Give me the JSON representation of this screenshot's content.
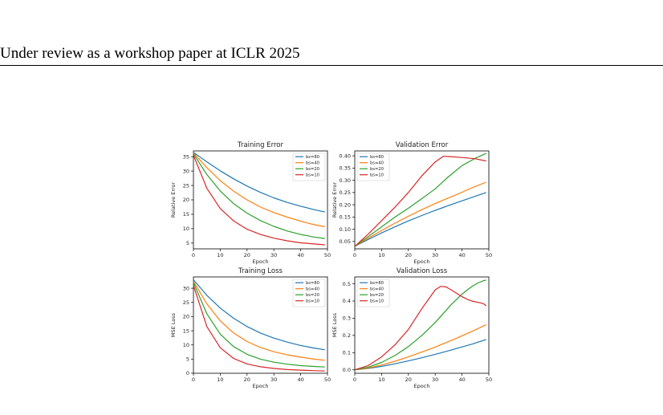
{
  "header": {
    "text": "Under review as a workshop paper at ICLR 2025"
  },
  "colors": {
    "bs80": "#1f77b4",
    "bs40": "#ff7f0e",
    "bs20": "#2ca02c",
    "bs10": "#d62728"
  },
  "chart_data": [
    {
      "type": "line",
      "title": "Training Error",
      "xlabel": "Epoch",
      "ylabel": "Relative Error",
      "xlim": [
        0,
        50
      ],
      "ylim": [
        3,
        37
      ],
      "xticks": [
        "0",
        "10",
        "20",
        "30",
        "40",
        "50"
      ],
      "xtick_values": [
        0,
        10,
        20,
        30,
        40,
        50
      ],
      "yticks": [
        "5",
        "10",
        "15",
        "20",
        "25",
        "30",
        "35"
      ],
      "ytick_values": [
        5,
        10,
        15,
        20,
        25,
        30,
        35
      ],
      "legend": "top-right",
      "x": [
        0,
        5,
        10,
        15,
        20,
        25,
        30,
        35,
        40,
        45,
        49
      ],
      "series": [
        {
          "name": "bs=80",
          "color": "#1f77b4",
          "values": [
            36.5,
            33.2,
            30.1,
            27.3,
            24.8,
            22.6,
            20.7,
            19.1,
            17.8,
            16.6,
            15.8
          ]
        },
        {
          "name": "bs=40",
          "color": "#ff7f0e",
          "values": [
            36.3,
            31.2,
            26.7,
            23.0,
            20.0,
            17.5,
            15.6,
            14.0,
            12.6,
            11.4,
            10.7
          ]
        },
        {
          "name": "bs=20",
          "color": "#2ca02c",
          "values": [
            36.0,
            28.8,
            23.1,
            18.7,
            15.4,
            12.8,
            10.8,
            9.2,
            8.0,
            7.1,
            6.6
          ]
        },
        {
          "name": "bs=10",
          "color": "#d62728",
          "values": [
            35.5,
            24.0,
            17.0,
            12.7,
            9.8,
            8.0,
            6.7,
            5.8,
            5.1,
            4.7,
            4.4
          ]
        }
      ]
    },
    {
      "type": "line",
      "title": "Validation Error",
      "xlabel": "Epoch",
      "ylabel": "Relative Error",
      "xlim": [
        0,
        50
      ],
      "ylim": [
        0.02,
        0.42
      ],
      "xticks": [
        "0",
        "10",
        "20",
        "30",
        "40",
        "50"
      ],
      "xtick_values": [
        0,
        10,
        20,
        30,
        40,
        50
      ],
      "yticks": [
        "0.05",
        "0.10",
        "0.15",
        "0.20",
        "0.25",
        "0.30",
        "0.35",
        "0.40"
      ],
      "ytick_values": [
        0.05,
        0.1,
        0.15,
        0.2,
        0.25,
        0.3,
        0.35,
        0.4
      ],
      "legend": "top-left",
      "x": [
        0,
        5,
        10,
        15,
        20,
        25,
        30,
        33,
        35,
        40,
        45,
        49
      ],
      "series": [
        {
          "name": "bs=80",
          "color": "#1f77b4",
          "values": [
            0.03,
            0.058,
            0.085,
            0.11,
            0.134,
            0.156,
            0.177,
            0.189,
            0.197,
            0.216,
            0.235,
            0.25
          ]
        },
        {
          "name": "bs=40",
          "color": "#ff7f0e",
          "values": [
            0.03,
            0.063,
            0.095,
            0.125,
            0.153,
            0.18,
            0.205,
            0.219,
            0.228,
            0.251,
            0.275,
            0.292
          ]
        },
        {
          "name": "bs=20",
          "color": "#2ca02c",
          "values": [
            0.03,
            0.07,
            0.11,
            0.15,
            0.186,
            0.225,
            0.265,
            0.295,
            0.315,
            0.36,
            0.39,
            0.41
          ]
        },
        {
          "name": "bs=10",
          "color": "#d62728",
          "values": [
            0.03,
            0.08,
            0.135,
            0.19,
            0.25,
            0.318,
            0.375,
            0.398,
            0.397,
            0.393,
            0.388,
            0.379
          ]
        }
      ]
    },
    {
      "type": "line",
      "title": "Training Loss",
      "xlabel": "Epoch",
      "ylabel": "MSE Loss",
      "xlim": [
        0,
        50
      ],
      "ylim": [
        0,
        34
      ],
      "xticks": [
        "0",
        "10",
        "20",
        "30",
        "40",
        "50"
      ],
      "xtick_values": [
        0,
        10,
        20,
        30,
        40,
        50
      ],
      "yticks": [
        "0",
        "5",
        "10",
        "15",
        "20",
        "25",
        "30"
      ],
      "ytick_values": [
        0,
        5,
        10,
        15,
        20,
        25,
        30
      ],
      "legend": "top-right",
      "x": [
        0,
        5,
        10,
        15,
        20,
        25,
        30,
        35,
        40,
        45,
        49
      ],
      "series": [
        {
          "name": "bs=80",
          "color": "#1f77b4",
          "values": [
            33.0,
            27.5,
            23.0,
            19.4,
            16.5,
            14.2,
            12.4,
            11.0,
            9.8,
            8.9,
            8.3
          ]
        },
        {
          "name": "bs=40",
          "color": "#ff7f0e",
          "values": [
            32.5,
            24.5,
            18.5,
            14.2,
            11.2,
            9.1,
            7.6,
            6.5,
            5.7,
            5.0,
            4.6
          ]
        },
        {
          "name": "bs=20",
          "color": "#2ca02c",
          "values": [
            32.0,
            21.0,
            13.8,
            9.4,
            6.7,
            5.0,
            3.9,
            3.2,
            2.7,
            2.4,
            2.2
          ]
        },
        {
          "name": "bs=10",
          "color": "#d62728",
          "values": [
            31.0,
            16.5,
            9.0,
            5.2,
            3.3,
            2.3,
            1.7,
            1.3,
            1.1,
            0.9,
            0.8
          ]
        }
      ]
    },
    {
      "type": "line",
      "title": "Validation Loss",
      "xlabel": "Epoch",
      "ylabel": "MSE Loss",
      "xlim": [
        0,
        50
      ],
      "ylim": [
        -0.02,
        0.54
      ],
      "xticks": [
        "0",
        "10",
        "20",
        "30",
        "40",
        "50"
      ],
      "xtick_values": [
        0,
        10,
        20,
        30,
        40,
        50
      ],
      "yticks": [
        "0.0",
        "0.1",
        "0.2",
        "0.3",
        "0.4",
        "0.5"
      ],
      "ytick_values": [
        0.0,
        0.1,
        0.2,
        0.3,
        0.4,
        0.5
      ],
      "legend": "top-left",
      "x": [
        0,
        5,
        10,
        15,
        20,
        25,
        30,
        32,
        34,
        36,
        38,
        40,
        42,
        44,
        46,
        48,
        49
      ],
      "series": [
        {
          "name": "bs=80",
          "color": "#1f77b4",
          "values": [
            0.0,
            0.008,
            0.02,
            0.035,
            0.052,
            0.07,
            0.09,
            0.098,
            0.107,
            0.115,
            0.124,
            0.133,
            0.142,
            0.151,
            0.161,
            0.171,
            0.176
          ]
        },
        {
          "name": "bs=40",
          "color": "#ff7f0e",
          "values": [
            0.0,
            0.01,
            0.028,
            0.05,
            0.075,
            0.103,
            0.132,
            0.145,
            0.158,
            0.171,
            0.184,
            0.198,
            0.212,
            0.226,
            0.24,
            0.255,
            0.262
          ]
        },
        {
          "name": "bs=20",
          "color": "#2ca02c",
          "values": [
            0.0,
            0.015,
            0.043,
            0.083,
            0.135,
            0.2,
            0.275,
            0.31,
            0.345,
            0.38,
            0.41,
            0.44,
            0.465,
            0.488,
            0.505,
            0.518,
            0.522
          ]
        },
        {
          "name": "bs=10",
          "color": "#d62728",
          "values": [
            0.0,
            0.025,
            0.075,
            0.145,
            0.235,
            0.355,
            0.465,
            0.485,
            0.482,
            0.465,
            0.445,
            0.425,
            0.41,
            0.398,
            0.392,
            0.385,
            0.372
          ]
        }
      ]
    }
  ]
}
